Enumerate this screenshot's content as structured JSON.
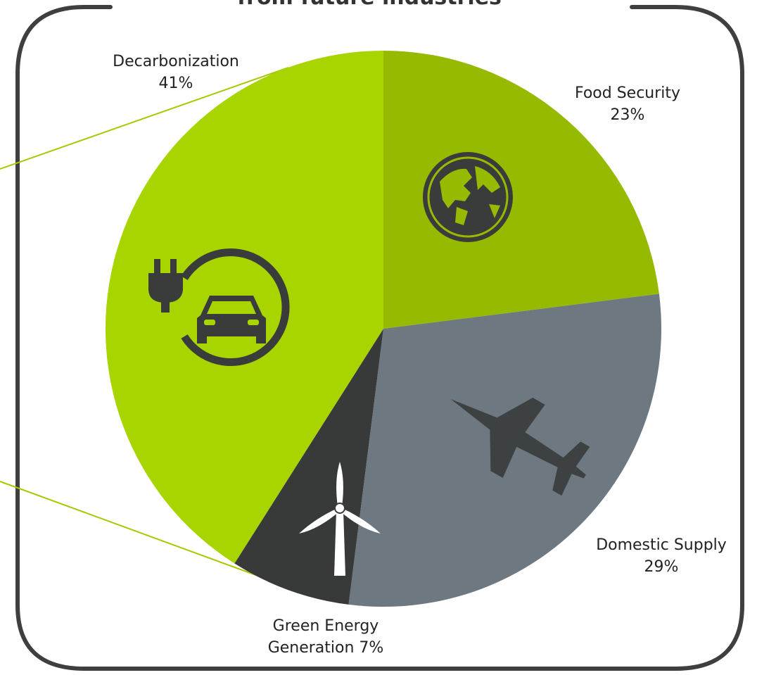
{
  "chart_data": {
    "type": "pie",
    "title": "from future industries",
    "start_angle_deg": 0,
    "direction": "clockwise",
    "slices": [
      {
        "label_line1": "Food Security",
        "label_line2": "23%",
        "value": 23,
        "color": "#96BA00",
        "icon": "globe-icon"
      },
      {
        "label_line1": "Domestic Supply",
        "label_line2": "29%",
        "value": 29,
        "color": "#6E7880",
        "icon": "fighter-jet-icon"
      },
      {
        "label_line1": "Green Energy",
        "label_line2": "Generation 7%",
        "value": 7,
        "color": "#383A3A",
        "icon": "wind-turbine-icon"
      },
      {
        "label_line1": "Decarbonization",
        "label_line2": "41%",
        "value": 41,
        "color": "#A8D400",
        "icon": "ev-charging-icon"
      }
    ],
    "legend": "none",
    "connector_color": "#A8C800",
    "frame_color": "#3F3F3F"
  }
}
